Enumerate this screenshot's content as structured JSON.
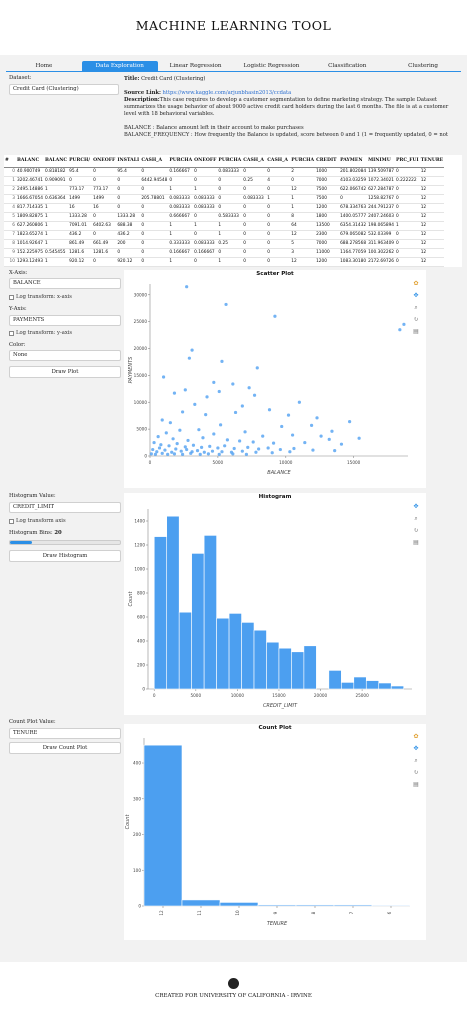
{
  "app": {
    "title": "MACHINE LEARNING TOOL"
  },
  "tabs": [
    "Home",
    "Data Exploration",
    "Linear Regression",
    "Logistic Regression",
    "Classification",
    "Clustering"
  ],
  "active_tab": "Data Exploration",
  "dataset": {
    "label": "Dataset:",
    "value": "Credit Card (Clustering)"
  },
  "description": {
    "title_label": "Title:",
    "title": "Credit Card (Clustering)",
    "source_label": "Source Link:",
    "source_url": "https://www.kaggle.com/arjunbhasin2013/ccdata",
    "desc_label": "Description:",
    "desc_text": "This case requires to develop a customer segmentation to define marketing strategy. The sample Dataset summarizes the usage behavior of about 9000 active credit card holders during the last 6 months. The file is at a customer level with 18 behavioral variables.",
    "balance_text": "BALANCE : Balance amount left in their account to make purchases",
    "balfreq_text": "BALANCE_FREQUENCY : How frequently the Balance is updated, score between 0 and 1 (1 = frequently updated, 0 = not"
  },
  "table": {
    "columns": [
      "#",
      "BALANC",
      "BALANC",
      "PURCH/",
      "ONEOFF",
      "INSTALI",
      "CASH_A",
      "PURCHA",
      "ONEOFF",
      "PURCHA",
      "CASH_A",
      "CASH_A",
      "PURCHA",
      "CREDIT",
      "PAYMEN",
      "MINIMU",
      "PRC_FUI",
      "TENURE"
    ],
    "rows": [
      [
        "0",
        "40.900749",
        "0.818182",
        "95.4",
        "0",
        "95.4",
        "0",
        "0.166667",
        "0",
        "0.083333",
        "0",
        "0",
        "2",
        "1000",
        "201.802084",
        "139.509787",
        "0",
        "12"
      ],
      [
        "1",
        "3202.46741",
        "0.909091",
        "0",
        "0",
        "0",
        "6442.94548",
        "0",
        "0",
        "0",
        "0.25",
        "4",
        "0",
        "7000",
        "4103.03259",
        "1072.34021",
        "0.222222",
        "12"
      ],
      [
        "2",
        "2495.14886",
        "1",
        "773.17",
        "773.17",
        "0",
        "0",
        "1",
        "1",
        "0",
        "0",
        "0",
        "12",
        "7500",
        "622.066742",
        "627.284787",
        "0",
        "12"
      ],
      [
        "3",
        "1666.67054",
        "0.636364",
        "1499",
        "1499",
        "0",
        "205.78801",
        "0.083333",
        "0.083333",
        "0",
        "0.083333",
        "1",
        "1",
        "7500",
        "0",
        "",
        "0",
        "12"
      ],
      [
        "4",
        "817.714335",
        "1",
        "16",
        "16",
        "0",
        "0",
        "0.083333",
        "0.083333",
        "0",
        "0",
        "0",
        "1",
        "1200",
        "678.334763",
        "244.791237",
        "0",
        "12"
      ],
      [
        "5",
        "1809.82875",
        "1",
        "1333.28",
        "0",
        "1333.28",
        "0",
        "0.666667",
        "0",
        "0.583333",
        "0",
        "0",
        "8",
        "1800",
        "1400.05777",
        "2407.24603",
        "0",
        "12"
      ],
      [
        "6",
        "627.260806",
        "1",
        "7091.01",
        "6402.63",
        "688.38",
        "0",
        "1",
        "1",
        "1",
        "0",
        "0",
        "64",
        "13500",
        "6354.31432",
        "198.065894",
        "1",
        "12"
      ],
      [
        "7",
        "1823.65274",
        "1",
        "436.2",
        "0",
        "436.2",
        "0",
        "1",
        "0",
        "1",
        "0",
        "0",
        "12",
        "2300",
        "679.065082",
        "532.03399",
        "0",
        "12"
      ],
      [
        "8",
        "1014.92647",
        "1",
        "861.49",
        "661.49",
        "200",
        "0",
        "0.333333",
        "0.083333",
        "0.25",
        "0",
        "0",
        "5",
        "7000",
        "688.278568",
        "311.963409",
        "0",
        "12"
      ],
      [
        "9",
        "152.225975",
        "0.545455",
        "1281.6",
        "1281.6",
        "0",
        "0",
        "0.166667",
        "0.166667",
        "0",
        "0",
        "0",
        "3",
        "11000",
        "1164.77059",
        "100.302262",
        "0",
        "12"
      ],
      [
        "10",
        "1293.12493",
        "1",
        "920.12",
        "0",
        "920.12",
        "0",
        "1",
        "0",
        "1",
        "0",
        "0",
        "12",
        "1200",
        "1083.30180",
        "2172.69726",
        "0",
        "12"
      ]
    ],
    "extra_cells": {
      "row3_payments": "1258.82767"
    }
  },
  "scatter_controls": {
    "x_label": "X-Axis:",
    "x_value": "BALANCE",
    "log_x": "Log transform: x-axis",
    "y_label": "Y-Axis:",
    "y_value": "PAYMENTS",
    "log_y": "Log transform: y-axis",
    "color_label": "Color:",
    "color_value": "None",
    "button": "Draw Plot"
  },
  "hist_controls": {
    "value_label": "Histogram Value:",
    "value": "CREDIT_LIMIT",
    "log": "Log transform axis",
    "bins_label": "Histogram Bins:",
    "bins_value": "20",
    "bins_fraction": 0.2,
    "button": "Draw Histogram"
  },
  "count_controls": {
    "value_label": "Count Plot Value:",
    "value": "TENURE",
    "button": "Draw Count Plot"
  },
  "footer": {
    "text": "CREATED FOR UNIVERSITY OF CALIFORNIA - IRVINE",
    "icon": "github-icon"
  },
  "colors": {
    "accent": "#2b8fe6",
    "bar": "#4c9ff0",
    "point": "#5aa6f2"
  },
  "chart_data": [
    {
      "type": "scatter",
      "title": "Scatter Plot",
      "xlabel": "BALANCE",
      "ylabel": "PAYMENTS",
      "xlim": [
        0,
        19000
      ],
      "ylim": [
        0,
        32000
      ],
      "xticks": [
        "0",
        "5000",
        "10000",
        "15000"
      ],
      "yticks": [
        "0",
        "5000",
        "10000",
        "15000",
        "20000",
        "25000",
        "30000"
      ],
      "points": [
        [
          2700,
          31500
        ],
        [
          5600,
          28200
        ],
        [
          9200,
          26000
        ],
        [
          18400,
          23500
        ],
        [
          18700,
          24500
        ],
        [
          3100,
          19700
        ],
        [
          2900,
          18200
        ],
        [
          5300,
          17600
        ],
        [
          1000,
          14700
        ],
        [
          7900,
          16400
        ],
        [
          4700,
          13700
        ],
        [
          7300,
          12700
        ],
        [
          5100,
          12000
        ],
        [
          6100,
          13400
        ],
        [
          4200,
          11000
        ],
        [
          1800,
          11700
        ],
        [
          2600,
          12300
        ],
        [
          7700,
          11300
        ],
        [
          11000,
          10000
        ],
        [
          3300,
          9600
        ],
        [
          6800,
          9300
        ],
        [
          8800,
          8600
        ],
        [
          2400,
          8200
        ],
        [
          4100,
          7700
        ],
        [
          6300,
          8100
        ],
        [
          10200,
          7600
        ],
        [
          12300,
          7100
        ],
        [
          14700,
          6400
        ],
        [
          900,
          6700
        ],
        [
          1500,
          6200
        ],
        [
          5200,
          5800
        ],
        [
          9700,
          5500
        ],
        [
          11900,
          5700
        ],
        [
          13400,
          4600
        ],
        [
          1200,
          4300
        ],
        [
          2200,
          4800
        ],
        [
          3600,
          4900
        ],
        [
          4700,
          4100
        ],
        [
          7000,
          4500
        ],
        [
          8300,
          3700
        ],
        [
          10500,
          3900
        ],
        [
          12600,
          3700
        ],
        [
          15400,
          3300
        ],
        [
          13200,
          3100
        ],
        [
          600,
          3600
        ],
        [
          1700,
          3200
        ],
        [
          2800,
          2900
        ],
        [
          3900,
          3400
        ],
        [
          5700,
          3000
        ],
        [
          6600,
          2800
        ],
        [
          7600,
          2600
        ],
        [
          9100,
          2400
        ],
        [
          11400,
          2500
        ],
        [
          14100,
          2200
        ],
        [
          300,
          2500
        ],
        [
          800,
          2100
        ],
        [
          1400,
          1900
        ],
        [
          2000,
          2300
        ],
        [
          2600,
          1700
        ],
        [
          3200,
          2000
        ],
        [
          3800,
          1600
        ],
        [
          4400,
          1800
        ],
        [
          5000,
          1500
        ],
        [
          5500,
          1900
        ],
        [
          6200,
          1400
        ],
        [
          7200,
          1600
        ],
        [
          8000,
          1300
        ],
        [
          8700,
          1500
        ],
        [
          9600,
          1200
        ],
        [
          10600,
          1400
        ],
        [
          12000,
          1100
        ],
        [
          13600,
          1000
        ],
        [
          200,
          1200
        ],
        [
          500,
          800
        ],
        [
          700,
          1500
        ],
        [
          1100,
          1100
        ],
        [
          1600,
          700
        ],
        [
          1900,
          1300
        ],
        [
          2300,
          900
        ],
        [
          2700,
          1200
        ],
        [
          3100,
          800
        ],
        [
          3500,
          1000
        ],
        [
          4000,
          700
        ],
        [
          4600,
          900
        ],
        [
          5300,
          800
        ],
        [
          6000,
          700
        ],
        [
          6800,
          900
        ],
        [
          7800,
          700
        ],
        [
          9000,
          600
        ],
        [
          10300,
          800
        ],
        [
          100,
          400
        ],
        [
          400,
          300
        ],
        [
          900,
          500
        ],
        [
          1300,
          300
        ],
        [
          1800,
          400
        ],
        [
          2400,
          300
        ],
        [
          3000,
          500
        ],
        [
          3700,
          300
        ],
        [
          4300,
          400
        ],
        [
          5100,
          300
        ],
        [
          6100,
          400
        ],
        [
          7100,
          300
        ]
      ]
    },
    {
      "type": "bar",
      "title": "Histogram",
      "xlabel": "CREDIT_LIMIT",
      "ylabel": "Count",
      "xticks": [
        "0",
        "5000",
        "10000",
        "15000",
        "20000",
        "25000"
      ],
      "yticks": [
        "0",
        "200",
        "400",
        "600",
        "800",
        "1000",
        "1200",
        "1400"
      ],
      "xlim": [
        -750,
        31000
      ],
      "ylim": [
        0,
        1500
      ],
      "bin_starts": [
        0,
        1500,
        3000,
        4500,
        6000,
        7500,
        9000,
        10500,
        12000,
        13500,
        15000,
        16500,
        18000,
        19500,
        21000,
        22500,
        24000,
        25500,
        27000,
        28500
      ],
      "bin_width": 1500,
      "values": [
        1270,
        1440,
        640,
        1130,
        1280,
        590,
        630,
        555,
        490,
        390,
        340,
        310,
        360,
        0,
        155,
        55,
        100,
        70,
        50,
        25
      ]
    },
    {
      "type": "bar",
      "title": "Count Plot",
      "xlabel": "TENURE",
      "ylabel": "Count",
      "categories": [
        "12",
        "11",
        "10",
        "9",
        "8",
        "7",
        "6"
      ],
      "values": [
        450,
        17,
        10,
        3,
        3,
        3,
        2
      ],
      "yticks": [
        "0",
        "100",
        "200",
        "300",
        "400"
      ],
      "ylim": [
        0,
        470
      ]
    }
  ]
}
